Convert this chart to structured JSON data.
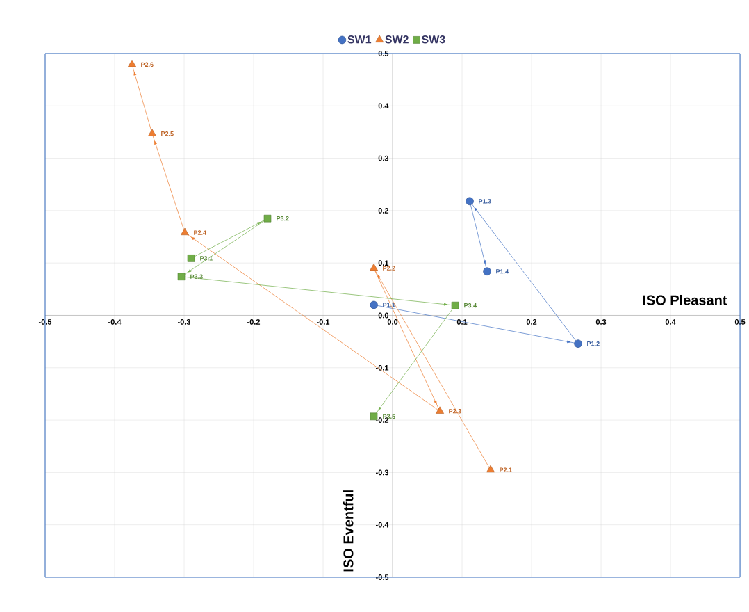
{
  "chart_data": {
    "type": "line",
    "xlabel": "ISO Pleasant",
    "ylabel": "ISO Eventful",
    "xlim": [
      -0.5,
      0.5
    ],
    "ylim": [
      -0.5,
      0.5
    ],
    "xticks": [
      -0.5,
      -0.4,
      -0.3,
      -0.2,
      -0.1,
      {
        "value": 0,
        "label": "0.0"
      },
      0.1,
      0.2,
      0.3,
      0.4,
      0.5
    ],
    "yticks": [
      -0.5,
      -0.4,
      -0.3,
      -0.2,
      -0.1,
      {
        "value": 0,
        "label": "0.0"
      },
      0.1,
      0.2,
      0.3,
      0.4,
      0.5
    ],
    "grid": true,
    "legend": "top",
    "series": [
      {
        "name": "SW1",
        "color": "#4472c4",
        "marker": "circle",
        "x": [
          -0.027,
          0.267,
          0.111,
          0.136
        ],
        "values": [
          0.02,
          -0.054,
          0.218,
          0.084
        ],
        "value_labels": [
          "P1.1",
          "P1.2",
          "P1.3",
          "P1.4"
        ]
      },
      {
        "name": "SW2",
        "color": "#ed7d31",
        "marker": "triangle",
        "x": [
          0.141,
          -0.027,
          0.068,
          -0.299,
          -0.346,
          -0.375
        ],
        "values": [
          -0.295,
          0.09,
          -0.183,
          0.158,
          0.347,
          0.479
        ],
        "value_labels": [
          "P2.1",
          "P2.2",
          "P2.3",
          "P2.4",
          "P2.5",
          "P2.6"
        ]
      },
      {
        "name": "SW3",
        "color": "#70ad47",
        "marker": "square",
        "x": [
          -0.29,
          -0.18,
          -0.304,
          0.09,
          -0.027
        ],
        "values": [
          0.109,
          0.185,
          0.074,
          0.019,
          -0.193
        ],
        "value_labels": [
          "P3.1",
          "P3.2",
          "P3.3",
          "P3.4",
          "P3.5"
        ]
      }
    ]
  }
}
